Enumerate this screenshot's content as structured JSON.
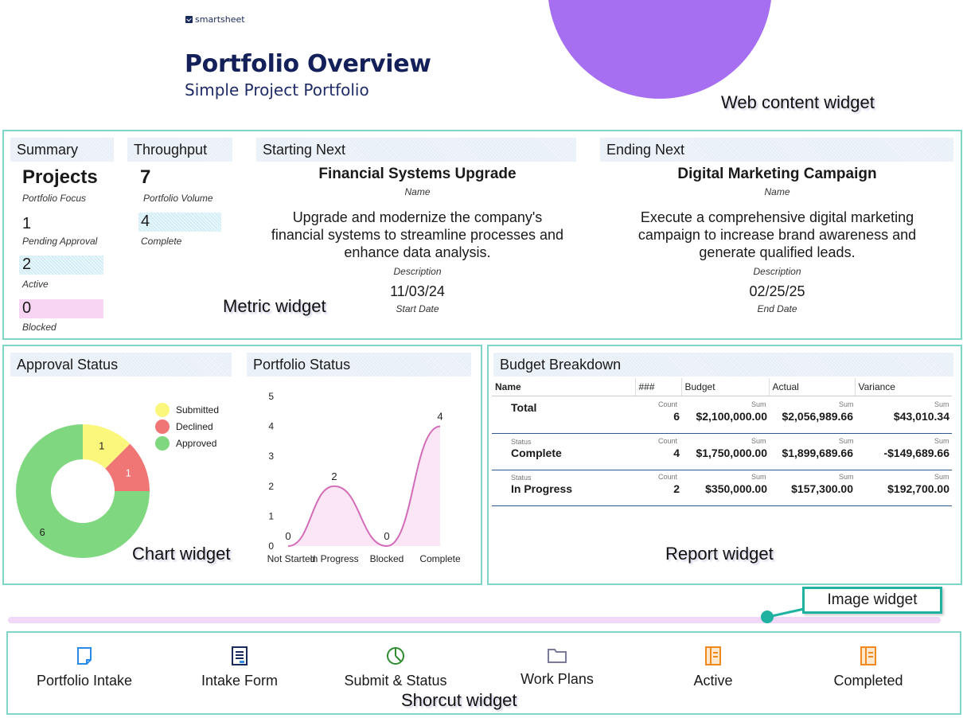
{
  "header": {
    "logo_text": "smartsheet",
    "title": "Portfolio Overview",
    "subtitle": "Simple Project Portfolio",
    "web_content_label": "Web content widget"
  },
  "metric": {
    "summary": {
      "header": "Summary",
      "projects_value": "Projects",
      "projects_caption": "Portfolio Focus",
      "pending_value": "1",
      "pending_caption": "Pending Approval",
      "active_value": "2",
      "active_caption": "Active",
      "blocked_value": "0",
      "blocked_caption": "Blocked"
    },
    "throughput": {
      "header": "Throughput",
      "volume_value": "7",
      "volume_caption": "Portfolio Volume",
      "complete_value": "4",
      "complete_caption": "Complete"
    },
    "starting_next": {
      "header": "Starting Next",
      "name": "Financial Systems Upgrade",
      "name_caption": "Name",
      "description": "Upgrade and modernize the company's financial systems to streamline processes and enhance data analysis.",
      "description_caption": "Description",
      "date": "11/03/24",
      "date_caption": "Start Date"
    },
    "ending_next": {
      "header": "Ending Next",
      "name": "Digital Marketing Campaign",
      "name_caption": "Name",
      "description": "Execute a comprehensive digital marketing campaign to increase brand awareness and generate qualified leads.",
      "description_caption": "Description",
      "date": "02/25/25",
      "date_caption": "End Date"
    },
    "label": "Metric widget"
  },
  "charts": {
    "approval_header": "Approval Status",
    "portfolio_header": "Portfolio Status",
    "label": "Chart widget"
  },
  "chart_data": [
    {
      "type": "pie",
      "title": "Approval Status",
      "categories": [
        "Submitted",
        "Declined",
        "Approved"
      ],
      "values": [
        1,
        1,
        6
      ],
      "colors": [
        "#fbf77c",
        "#f07575",
        "#7fd77f"
      ],
      "donut": true,
      "legend": "top-right"
    },
    {
      "type": "area",
      "title": "Portfolio Status",
      "categories": [
        "Not Started",
        "In Progress",
        "Blocked",
        "Complete"
      ],
      "values": [
        0,
        2,
        0,
        4
      ],
      "ylim": [
        0,
        5
      ],
      "yticks": [
        0,
        1,
        2,
        3,
        4,
        5
      ],
      "color": "#d36cb8",
      "fill": "#fbe6f5",
      "grid": false
    }
  ],
  "report": {
    "header": "Budget Breakdown",
    "columns": [
      "Name",
      "###",
      "Budget",
      "Actual",
      "Variance"
    ],
    "rows": [
      {
        "group": "",
        "name": "Total",
        "count_label": "Count",
        "count": "6",
        "sum_label": "Sum",
        "budget": "$2,100,000.00",
        "actual": "$2,056,989.66",
        "variance": "$43,010.34"
      },
      {
        "group": "Status",
        "name": "Complete",
        "count_label": "Count",
        "count": "4",
        "sum_label": "Sum",
        "budget": "$1,750,000.00",
        "actual": "$1,899,689.66",
        "variance": "-$149,689.66"
      },
      {
        "group": "Status",
        "name": "In Progress",
        "count_label": "Count",
        "count": "2",
        "sum_label": "Sum",
        "budget": "$350,000.00",
        "actual": "$157,300.00",
        "variance": "$192,700.00"
      }
    ],
    "label": "Report widget"
  },
  "image_widget": {
    "label": "Image widget"
  },
  "shortcuts": {
    "items": [
      {
        "label": "Portfolio Intake",
        "icon": "document-icon",
        "color": "#2b8ae8"
      },
      {
        "label": "Intake Form",
        "icon": "form-icon",
        "color": "#1b2a5c"
      },
      {
        "label": "Submit & Status",
        "icon": "dashboard-icon",
        "color": "#2e8b2e"
      },
      {
        "label": "Work Plans",
        "icon": "folder-icon",
        "color": "#7a7a9a"
      },
      {
        "label": "Active",
        "icon": "sheet-icon",
        "color": "#f08a1c"
      },
      {
        "label": "Completed",
        "icon": "sheet-icon",
        "color": "#f08a1c"
      }
    ],
    "label": "Shorcut widget"
  }
}
